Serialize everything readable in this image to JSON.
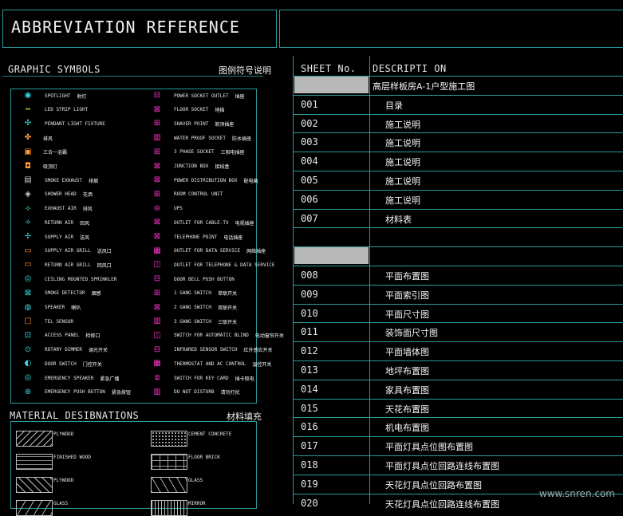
{
  "title": "ABBREVIATION REFERENCE",
  "graphic_symbols": {
    "heading_en": "GRAPHIC SYMBOLS",
    "heading_cn": "图例符号说明",
    "left_column": [
      {
        "icon": "spotlight-icon",
        "en": "SPOTLIGHT",
        "cn": "射灯"
      },
      {
        "icon": "led-strip-icon",
        "en": "LED STRIP LIGHT",
        "cn": ""
      },
      {
        "icon": "pendant-light-icon",
        "en": "PENDANT LIGHT FIXTURE",
        "cn": ""
      },
      {
        "icon": "fan-icon",
        "en": "",
        "cn": "排风"
      },
      {
        "icon": "box-light-icon",
        "en": "",
        "cn": "三合一浴霸"
      },
      {
        "icon": "square-light-icon",
        "en": "",
        "cn": "吸顶灯"
      },
      {
        "icon": "smoke-exhaust-icon",
        "en": "SMOKE EXHAUST",
        "cn": "排烟"
      },
      {
        "icon": "shower-head-icon",
        "en": "SHOWER HEAD",
        "cn": "花洒"
      },
      {
        "icon": "exhaust-air-icon",
        "en": "EXHAUST AIR",
        "cn": "排风"
      },
      {
        "icon": "return-air-icon",
        "en": "RETURN AIR",
        "cn": "回风"
      },
      {
        "icon": "supply-air-icon",
        "en": "SUPPLY AIR",
        "cn": "送风"
      },
      {
        "icon": "supply-grill-icon",
        "en": "SUPPLY AIR GRILL",
        "cn": "送风口"
      },
      {
        "icon": "return-grill-icon",
        "en": "RETURN AIR GRILL",
        "cn": "回风口"
      },
      {
        "icon": "sprinkler-icon",
        "en": "CEILING MOUNTED SPRINKLER",
        "cn": ""
      },
      {
        "icon": "smoke-detector-icon",
        "en": "SMOKE DETECTOR",
        "cn": "烟感"
      },
      {
        "icon": "speaker-icon",
        "en": "SPEAKER",
        "cn": "喇叭"
      },
      {
        "icon": "tel-sensor-icon",
        "en": "TEL SENSOR",
        "cn": ""
      },
      {
        "icon": "access-panel-icon",
        "en": "ACCESS PANEL",
        "cn": "检修口"
      },
      {
        "icon": "rotary-dimmer-icon",
        "en": "ROTARY DIMMER",
        "cn": "调光开关"
      },
      {
        "icon": "door-switch-icon",
        "en": "DOOR SWITCH",
        "cn": "门控开关"
      },
      {
        "icon": "emergency-speaker-icon",
        "en": "EMERGENCY SPEAKER",
        "cn": "紧急广播"
      },
      {
        "icon": "emergency-button-icon",
        "en": "EMERGENCY PUSH BUTTON",
        "cn": "紧急按钮"
      }
    ],
    "right_column": [
      {
        "icon": "power-socket-icon",
        "en": "POWER SOCKET OUTLET",
        "cn": "插座"
      },
      {
        "icon": "floor-socket-icon",
        "en": "FLOOR SOCKET",
        "cn": "地插"
      },
      {
        "icon": "shaver-point-icon",
        "en": "SHAVER POINT",
        "cn": "剃须插座"
      },
      {
        "icon": "waterproof-socket-icon",
        "en": "WATER PROOF SOCKET",
        "cn": "防水插座"
      },
      {
        "icon": "three-phase-icon",
        "en": "3 PHASE SOCKET",
        "cn": "三相电插座"
      },
      {
        "icon": "junction-box-icon",
        "en": "JUNCTION BOX",
        "cn": "接线盒"
      },
      {
        "icon": "distribution-box-icon",
        "en": "POWER DISTRIBUTION BOX",
        "cn": "配电箱"
      },
      {
        "icon": "room-control-icon",
        "en": "ROOM CONTROL UNIT",
        "cn": ""
      },
      {
        "icon": "ups-icon",
        "en": "UPS",
        "cn": ""
      },
      {
        "icon": "cable-tv-icon",
        "en": "OUTLET FOR CABLE-TV",
        "cn": "电视插座"
      },
      {
        "icon": "telephone-icon",
        "en": "TELEPHONE POINT",
        "cn": "电话插座"
      },
      {
        "icon": "data-outlet-icon",
        "en": "OUTLET FOR DATA SERVICE",
        "cn": "网络插座"
      },
      {
        "icon": "tel-data-icon",
        "en": "OUTLET FOR TELEPHONE & DATA SERVICE",
        "cn": ""
      },
      {
        "icon": "doorbell-icon",
        "en": "DOOR BELL PUSH BUTTON",
        "cn": ""
      },
      {
        "icon": "one-gang-icon",
        "en": "1 GANG SWITCH",
        "cn": "单联开关"
      },
      {
        "icon": "two-gang-icon",
        "en": "2 GANG SWITCH",
        "cn": "双联开关"
      },
      {
        "icon": "three-gang-icon",
        "en": "3 GANG SWITCH",
        "cn": "三联开关"
      },
      {
        "icon": "blind-switch-icon",
        "en": "SWITCH FOR AUTOMATIC BLIND",
        "cn": "电动窗帘开关"
      },
      {
        "icon": "infrared-icon",
        "en": "INFRARED SENSOR SWITCH",
        "cn": "红外感应开关"
      },
      {
        "icon": "thermostat-icon",
        "en": "THERMOSTAT AND AC CONTROL",
        "cn": "温控开关"
      },
      {
        "icon": "key-card-icon",
        "en": "SWITCH FOR KEY CARD",
        "cn": "插卡取电"
      },
      {
        "icon": "dnd-icon",
        "en": "DO NOT DISTURB",
        "cn": "请勿打扰"
      }
    ]
  },
  "material": {
    "heading_en": "MATERIAL DESIBNATIONS",
    "heading_cn": "材料填充",
    "items": [
      {
        "label": "PLYWOOD",
        "col": 0,
        "row": 0
      },
      {
        "label": "CEMENT CONCRETE",
        "col": 1,
        "row": 0
      },
      {
        "label": "FINISHED WOOD",
        "col": 0,
        "row": 1
      },
      {
        "label": "FLOOR BRICK",
        "col": 1,
        "row": 1
      },
      {
        "label": "PLYWOOD",
        "col": 0,
        "row": 2
      },
      {
        "label": "GLASS",
        "col": 1,
        "row": 2
      },
      {
        "label": "GLASS",
        "col": 0,
        "row": 3
      },
      {
        "label": "MIRROR",
        "col": 1,
        "row": 3
      }
    ]
  },
  "sheet_table": {
    "col_sheet": "SHEET No.",
    "col_desc": "DESCRIPTI ON",
    "group1_title": "高层样板房A-1户型施工图",
    "rows1": [
      {
        "no": "001",
        "desc": "目录"
      },
      {
        "no": "002",
        "desc": "施工说明"
      },
      {
        "no": "003",
        "desc": "施工说明"
      },
      {
        "no": "004",
        "desc": "施工说明"
      },
      {
        "no": "005",
        "desc": "施工说明"
      },
      {
        "no": "006",
        "desc": "施工说明"
      },
      {
        "no": "007",
        "desc": "材料表"
      }
    ],
    "rows2": [
      {
        "no": "008",
        "desc": "平面布置图"
      },
      {
        "no": "009",
        "desc": "平面索引图"
      },
      {
        "no": "010",
        "desc": "平面尺寸图"
      },
      {
        "no": "011",
        "desc": "装饰面尺寸图"
      },
      {
        "no": "012",
        "desc": "平面墙体图"
      },
      {
        "no": "013",
        "desc": "地坪布置图"
      },
      {
        "no": "014",
        "desc": "家具布置图"
      },
      {
        "no": "015",
        "desc": "天花布置图"
      },
      {
        "no": "016",
        "desc": "机电布置图"
      },
      {
        "no": "017",
        "desc": "平面灯具点位图布置图"
      },
      {
        "no": "018",
        "desc": "平面灯具点位回路连线布置图"
      },
      {
        "no": "019",
        "desc": "天花灯具点位回路布置图"
      },
      {
        "no": "020",
        "desc": "天花灯具点位回路连线布置图"
      }
    ]
  },
  "colors": {
    "frame": "#2a9a9a",
    "accent_pink": "#ff33cc",
    "accent_cyan": "#33dddd",
    "accent_yellow": "#ffee33",
    "accent_orange": "#ff9933"
  },
  "watermark": "www.snren.com"
}
